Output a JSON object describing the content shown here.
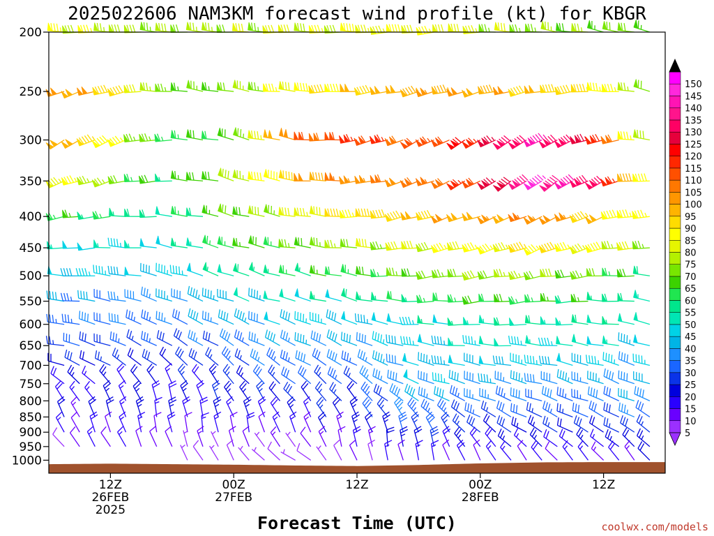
{
  "chart_data": {
    "type": "wind-barb time-height profile",
    "title": "2025022606 NAM3KM forecast wind profile (kt) for KBGR",
    "xlabel": "Forecast Time (UTC)",
    "credit": "coolwx.com/models",
    "y_axis": {
      "scale": "log-pressure",
      "inverted": true,
      "ticks": [
        200,
        250,
        300,
        350,
        400,
        450,
        500,
        550,
        600,
        650,
        700,
        750,
        800,
        850,
        900,
        950,
        1000
      ],
      "range": [
        200,
        1050
      ]
    },
    "x_axis": {
      "range_hours": [
        0,
        60
      ],
      "ticks": [
        {
          "hour": 6,
          "lines": [
            "12Z",
            "26FEB",
            "2025"
          ]
        },
        {
          "hour": 18,
          "lines": [
            "00Z",
            "27FEB"
          ]
        },
        {
          "hour": 30,
          "lines": [
            "12Z"
          ]
        },
        {
          "hour": 42,
          "lines": [
            "00Z",
            "28FEB"
          ]
        },
        {
          "hour": 54,
          "lines": [
            "12Z"
          ]
        }
      ]
    },
    "colorbar": {
      "units": "kt",
      "levels": [
        5,
        10,
        15,
        20,
        25,
        30,
        35,
        40,
        45,
        50,
        55,
        60,
        65,
        70,
        75,
        80,
        85,
        90,
        95,
        100,
        105,
        110,
        115,
        120,
        125,
        130,
        135,
        140,
        145,
        150
      ],
      "colors": [
        "#9b30ff",
        "#6a00ff",
        "#2a00ff",
        "#0000dd",
        "#0a33e8",
        "#1a66ff",
        "#1e90ff",
        "#00b4e6",
        "#00d2e6",
        "#00e6b4",
        "#00e68c",
        "#20e650",
        "#3cd200",
        "#78e600",
        "#b4f000",
        "#e6f500",
        "#ffff00",
        "#ffdc00",
        "#ffb400",
        "#ff9600",
        "#ff7800",
        "#ff5000",
        "#ff2800",
        "#ff0000",
        "#e6003c",
        "#ff0064",
        "#ff148c",
        "#ff14b4",
        "#ff28dc",
        "#ff00ff"
      ],
      "extend_low_color": "#9b30ff",
      "extend_high_color": "#000000"
    },
    "times_hours": [
      0,
      1.5,
      3,
      4.5,
      6,
      7.5,
      9,
      10.5,
      12,
      13.5,
      15,
      16.5,
      18,
      19.5,
      21,
      22.5,
      24,
      25.5,
      27,
      28.5,
      30,
      31.5,
      33,
      34.5,
      36,
      37.5,
      39,
      40.5,
      42,
      43.5,
      45,
      46.5,
      48,
      49.5,
      51,
      52.5,
      54,
      55.5,
      57,
      58.5,
      60
    ],
    "levels_hpa": [
      200,
      250,
      300,
      350,
      400,
      450,
      500,
      550,
      600,
      650,
      700,
      750,
      800,
      850,
      900,
      950,
      1000
    ],
    "profile_keyframes": [
      {
        "hour": 0,
        "speed_kt": [
          85,
          105,
          105,
          90,
          65,
          50,
          45,
          40,
          35,
          30,
          25,
          20,
          15,
          15,
          15,
          10,
          null
        ],
        "dir_deg": [
          270,
          250,
          240,
          250,
          255,
          260,
          270,
          275,
          280,
          280,
          285,
          300,
          320,
          330,
          330,
          320,
          null
        ]
      },
      {
        "hour": 6,
        "speed_kt": [
          80,
          95,
          90,
          75,
          60,
          50,
          45,
          35,
          35,
          30,
          25,
          20,
          20,
          20,
          15,
          15,
          null
        ],
        "dir_deg": [
          270,
          255,
          245,
          255,
          265,
          270,
          275,
          280,
          285,
          290,
          300,
          320,
          330,
          340,
          340,
          330,
          null
        ]
      },
      {
        "hour": 12,
        "speed_kt": [
          75,
          70,
          65,
          60,
          55,
          50,
          45,
          40,
          35,
          30,
          25,
          20,
          20,
          20,
          15,
          10,
          null
        ],
        "dir_deg": [
          275,
          275,
          270,
          270,
          275,
          280,
          285,
          290,
          295,
          300,
          310,
          330,
          345,
          350,
          350,
          340,
          null
        ]
      },
      {
        "hour": 18,
        "speed_kt": [
          75,
          70,
          65,
          75,
          70,
          65,
          55,
          45,
          40,
          35,
          30,
          25,
          25,
          20,
          15,
          10,
          5
        ],
        "dir_deg": [
          275,
          280,
          285,
          285,
          285,
          285,
          290,
          290,
          295,
          300,
          310,
          320,
          330,
          340,
          350,
          340,
          330
        ]
      },
      {
        "hour": 24,
        "speed_kt": [
          80,
          85,
          105,
          95,
          80,
          70,
          60,
          50,
          45,
          40,
          35,
          30,
          25,
          20,
          15,
          10,
          5
        ],
        "dir_deg": [
          270,
          275,
          280,
          280,
          280,
          280,
          285,
          285,
          290,
          295,
          300,
          310,
          320,
          330,
          335,
          320,
          300
        ]
      },
      {
        "hour": 30,
        "speed_kt": [
          85,
          95,
          115,
          105,
          90,
          75,
          65,
          55,
          45,
          40,
          35,
          30,
          25,
          25,
          20,
          15,
          10
        ],
        "dir_deg": [
          270,
          265,
          260,
          265,
          270,
          275,
          280,
          285,
          290,
          295,
          300,
          310,
          320,
          330,
          340,
          350,
          340
        ]
      },
      {
        "hour": 36,
        "speed_kt": [
          85,
          100,
          110,
          105,
          95,
          80,
          70,
          60,
          50,
          45,
          45,
          45,
          40,
          35,
          30,
          25,
          15
        ],
        "dir_deg": [
          265,
          255,
          245,
          250,
          255,
          260,
          265,
          270,
          275,
          280,
          285,
          290,
          300,
          320,
          340,
          350,
          350
        ]
      },
      {
        "hour": 42,
        "speed_kt": [
          80,
          100,
          120,
          115,
          100,
          85,
          75,
          65,
          55,
          50,
          45,
          40,
          35,
          30,
          25,
          20,
          15
        ],
        "dir_deg": [
          270,
          255,
          240,
          240,
          250,
          255,
          260,
          265,
          270,
          275,
          280,
          285,
          290,
          300,
          310,
          320,
          330
        ]
      },
      {
        "hour": 48,
        "speed_kt": [
          75,
          95,
          140,
          145,
          105,
          90,
          75,
          65,
          55,
          50,
          45,
          40,
          35,
          30,
          25,
          20,
          15
        ],
        "dir_deg": [
          275,
          260,
          240,
          235,
          245,
          250,
          260,
          265,
          270,
          275,
          280,
          285,
          290,
          295,
          300,
          310,
          320
        ]
      },
      {
        "hour": 54,
        "speed_kt": [
          70,
          90,
          120,
          130,
          95,
          85,
          70,
          60,
          55,
          50,
          45,
          40,
          35,
          30,
          25,
          20,
          15
        ],
        "dir_deg": [
          280,
          270,
          255,
          245,
          250,
          255,
          265,
          270,
          275,
          280,
          285,
          290,
          290,
          295,
          300,
          310,
          320
        ]
      },
      {
        "hour": 60,
        "speed_kt": [
          70,
          65,
          60,
          70,
          80,
          70,
          60,
          55,
          50,
          45,
          40,
          40,
          40,
          35,
          30,
          25,
          20
        ],
        "dir_deg": [
          285,
          285,
          285,
          280,
          275,
          275,
          280,
          280,
          285,
          285,
          290,
          290,
          295,
          300,
          305,
          310,
          320
        ]
      }
    ],
    "surface_pressure_hpa_keyframes": [
      {
        "hour": 0,
        "p": 1015
      },
      {
        "hour": 6,
        "p": 1013
      },
      {
        "hour": 12,
        "p": 1015
      },
      {
        "hour": 18,
        "p": 1017
      },
      {
        "hour": 24,
        "p": 1020
      },
      {
        "hour": 30,
        "p": 1022
      },
      {
        "hour": 36,
        "p": 1018
      },
      {
        "hour": 42,
        "p": 1012
      },
      {
        "hour": 48,
        "p": 1008
      },
      {
        "hour": 54,
        "p": 1007
      },
      {
        "hour": 60,
        "p": 1007
      }
    ],
    "colors": {
      "terrain": "#a0522d",
      "frame": "#000000",
      "background": "#ffffff"
    }
  }
}
